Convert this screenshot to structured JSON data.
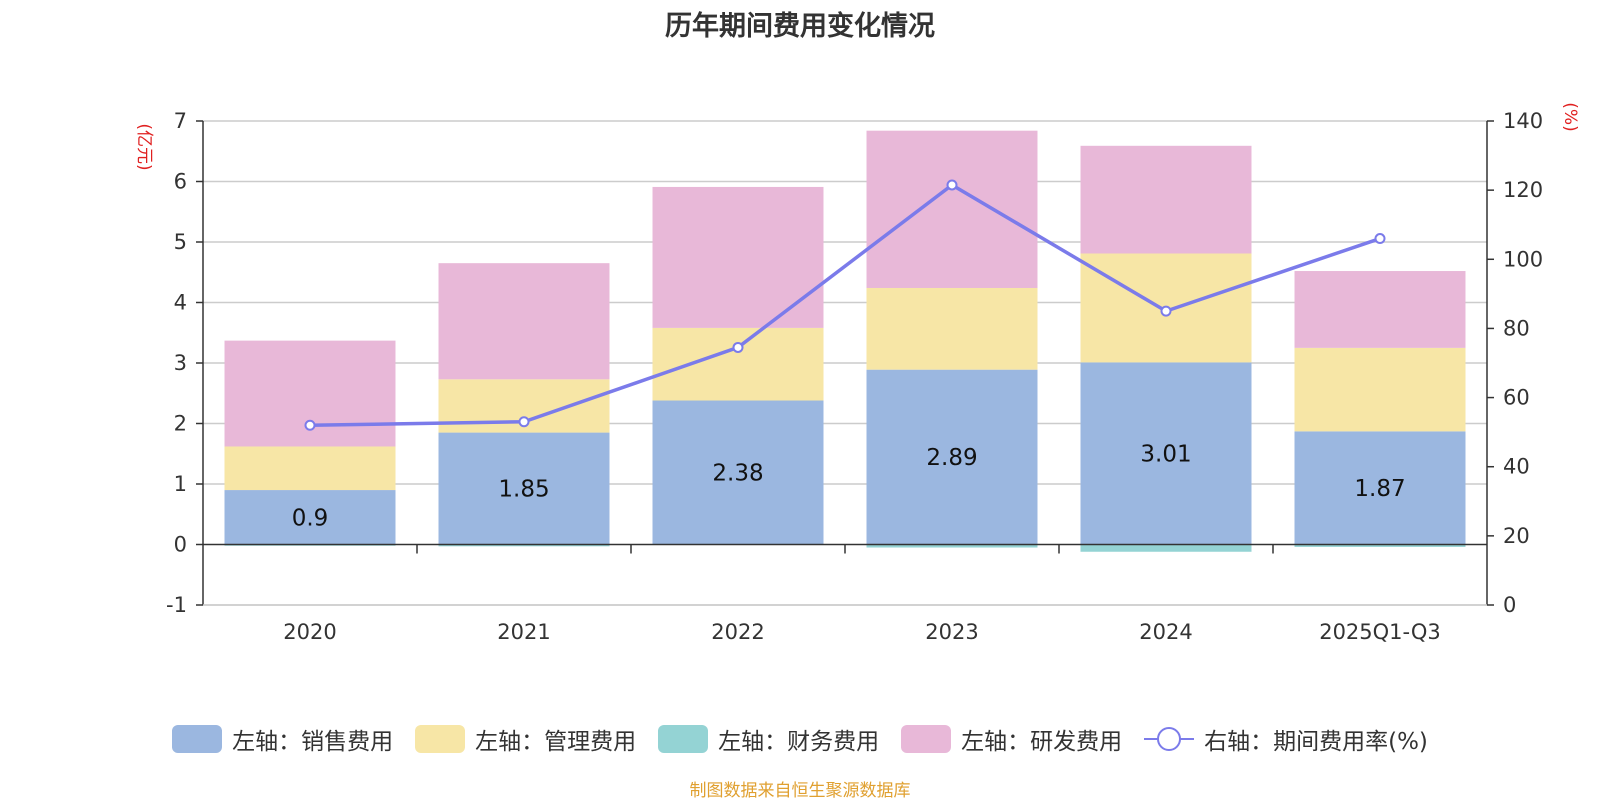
{
  "chart_data": {
    "type": "bar",
    "stacked": true,
    "title": "历年期间费用变化情况",
    "categories": [
      "2020",
      "2021",
      "2022",
      "2023",
      "2024",
      "2025Q1-Q3"
    ],
    "left_axis": {
      "unit": "(亿元)",
      "ylim": [
        -1,
        7
      ],
      "ticks": [
        -1,
        0,
        1,
        2,
        3,
        4,
        5,
        6,
        7
      ]
    },
    "right_axis": {
      "unit": "(%)",
      "ylim": [
        0,
        140
      ],
      "ticks": [
        0,
        20,
        40,
        60,
        80,
        100,
        120,
        140
      ]
    },
    "series": [
      {
        "name": "左轴：销售费用",
        "axis": "left",
        "color": "#9bb7e0",
        "values": [
          0.9,
          1.85,
          2.38,
          2.89,
          3.01,
          1.87
        ],
        "show_labels": true
      },
      {
        "name": "左轴：管理费用",
        "axis": "left",
        "color": "#f7e6a6",
        "values": [
          0.72,
          0.88,
          1.2,
          1.35,
          1.8,
          1.38
        ]
      },
      {
        "name": "左轴：财务费用",
        "axis": "left",
        "color": "#94d3d4",
        "values": [
          -0.02,
          -0.03,
          0.0,
          -0.05,
          -0.12,
          -0.04
        ]
      },
      {
        "name": "左轴：研发费用",
        "axis": "left",
        "color": "#e8b8d8",
        "values": [
          1.75,
          1.92,
          2.33,
          2.6,
          1.78,
          1.27
        ]
      }
    ],
    "line_series": {
      "name": "右轴：期间费用率(%)",
      "axis": "right",
      "color": "#7b7bea",
      "values": [
        52,
        53,
        74.5,
        121.5,
        85,
        106
      ]
    },
    "legend": [
      "左轴：销售费用",
      "左轴：管理费用",
      "左轴：财务费用",
      "左轴：研发费用",
      "右轴：期间费用率(%)"
    ],
    "legend_position": "bottom",
    "grid": true
  },
  "source_note": "制图数据来自恒生聚源数据库"
}
